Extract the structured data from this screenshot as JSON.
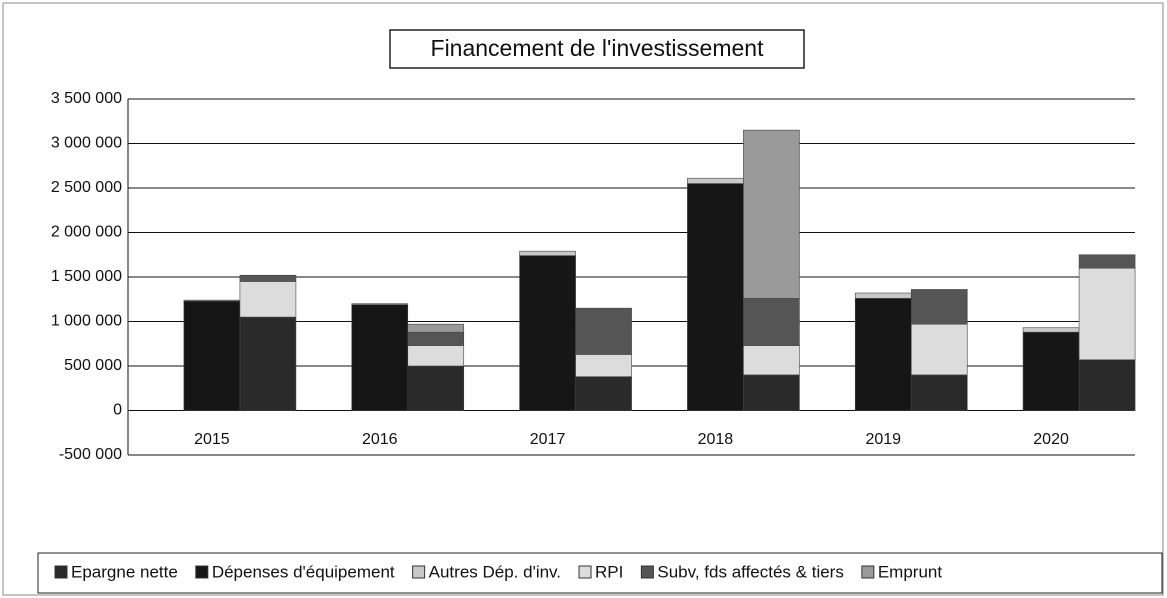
{
  "chart_data": {
    "type": "stacked_bar_grouped",
    "title": "Financement de l'investissement",
    "categories": [
      "2015",
      "2016",
      "2017",
      "2018",
      "2019",
      "2020"
    ],
    "series": [
      {
        "name": "Epargne nette",
        "color": "#2a2a2a",
        "stack": 1,
        "values": [
          1050000,
          500000,
          380000,
          400000,
          400000,
          570000
        ]
      },
      {
        "name": "Dépenses d'équipement",
        "color": "#161616",
        "stack": 0,
        "values": [
          1230000,
          1190000,
          1740000,
          2550000,
          1260000,
          880000
        ]
      },
      {
        "name": "Autres Dép. d'inv.",
        "color": "#c8c8c8",
        "stack": 0,
        "values": [
          10000,
          10000,
          50000,
          60000,
          60000,
          50000
        ]
      },
      {
        "name": "RPI",
        "color": "#dcdcdc",
        "stack": 1,
        "values": [
          400000,
          230000,
          250000,
          330000,
          570000,
          1030000
        ]
      },
      {
        "name": "Subv, fds affectés & tiers",
        "color": "#555555",
        "stack": 1,
        "values": [
          70000,
          150000,
          520000,
          530000,
          390000,
          150000
        ]
      },
      {
        "name": "Emprunt",
        "color": "#9a9a9a",
        "stack": 1,
        "values": [
          0,
          90000,
          0,
          1890000,
          0,
          0
        ]
      }
    ],
    "ylim": [
      -500000,
      3500000
    ],
    "yticks": [
      {
        "value": -500000,
        "label": "-500 000"
      },
      0,
      {
        "value": 500000,
        "label": "500 000"
      },
      {
        "value": 1000000,
        "label": "1 000 000"
      },
      {
        "value": 1500000,
        "label": "1 500 000"
      },
      {
        "value": 2000000,
        "label": "2 000 000"
      },
      {
        "value": 2500000,
        "label": "2 500 000"
      },
      {
        "value": 3000000,
        "label": "3 000 000"
      },
      {
        "value": 3500000,
        "label": "3 500 000"
      }
    ],
    "grid": true,
    "legend": "bottom"
  }
}
